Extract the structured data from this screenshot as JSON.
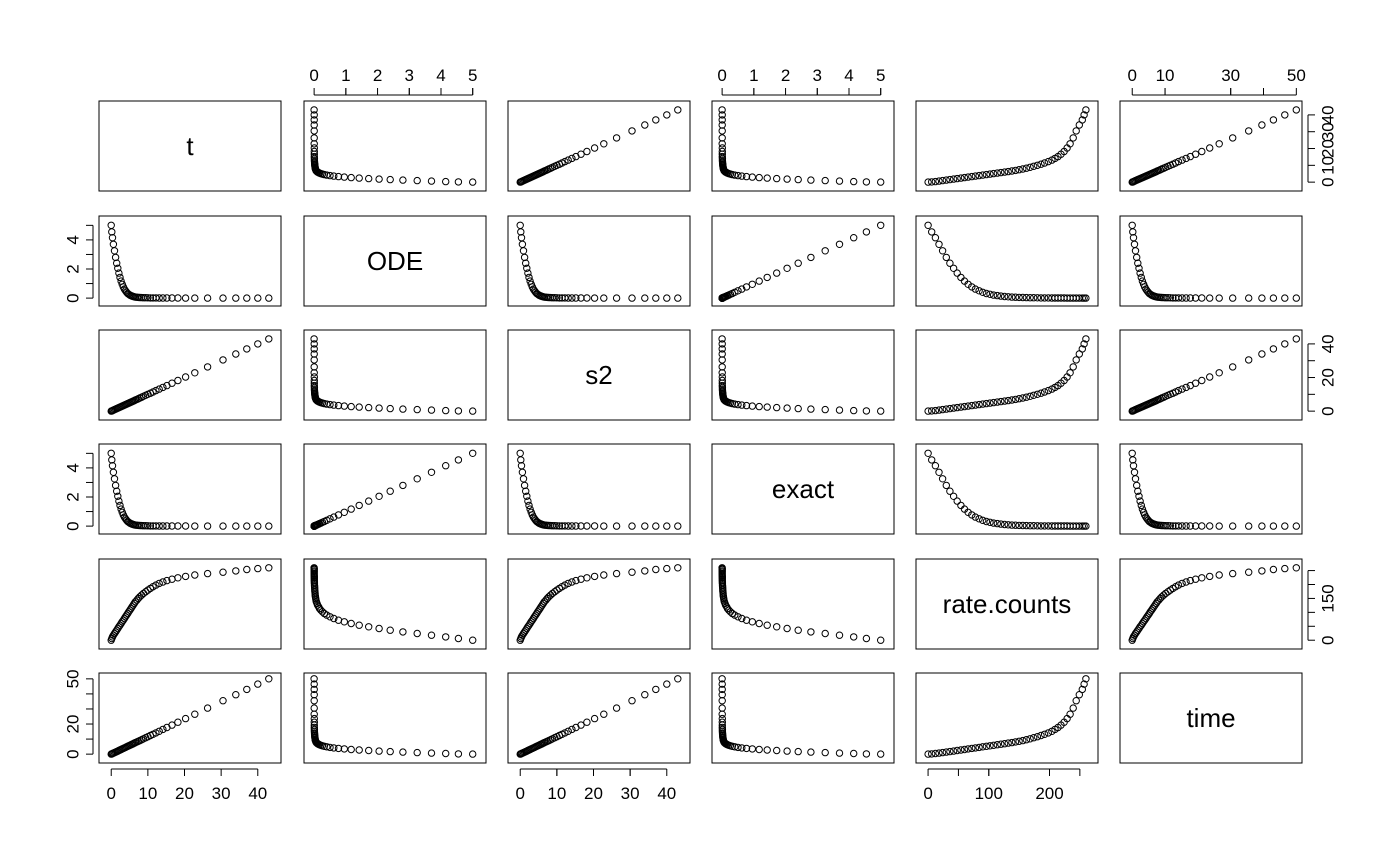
{
  "chart_data": {
    "type": "scatter",
    "variables": [
      "t",
      "ODE",
      "s2",
      "exact",
      "rate.counts",
      "time"
    ],
    "axes": {
      "t": {
        "range": [
          -1.7,
          44.7
        ],
        "ticks": [
          0,
          10,
          20,
          30,
          40
        ],
        "tick_labels": [
          "0",
          "10",
          "20",
          "30",
          "40"
        ],
        "tick_positions_minor": []
      },
      "ODE": {
        "range": [
          -0.13,
          5.23
        ],
        "ticks": [
          0,
          1,
          2,
          3,
          4,
          5
        ],
        "tick_labels": [
          "0",
          "1",
          "2",
          "3",
          "4",
          "5"
        ],
        "tick_labels_side": [
          "0",
          "2",
          "4"
        ],
        "ticks_side": [
          0,
          2,
          4
        ],
        "minor": [
          1,
          3,
          5
        ]
      },
      "s2": {
        "range": [
          -1.7,
          44.7
        ],
        "ticks": [
          0,
          10,
          20,
          30,
          40
        ],
        "tick_labels": [
          "0",
          "10",
          "20",
          "30",
          "40"
        ],
        "ticks_side": [
          0,
          20,
          40
        ],
        "minor": [
          10,
          30
        ]
      },
      "exact": {
        "range": [
          -0.13,
          5.23
        ],
        "ticks": [
          0,
          1,
          2,
          3,
          4,
          5
        ],
        "tick_labels": [
          "0",
          "1",
          "2",
          "3",
          "4",
          "5"
        ],
        "ticks_side": [
          0,
          2,
          4
        ],
        "minor": [
          1,
          3,
          5
        ]
      },
      "rate.counts": {
        "range": [
          -10,
          270
        ],
        "ticks": [
          0,
          100,
          200
        ],
        "tick_labels": [
          "0",
          "100",
          "200"
        ],
        "ticks_side": [
          0,
          150
        ],
        "minor": [
          50,
          100,
          200,
          250
        ]
      },
      "time": {
        "range": [
          -1.9,
          49.9
        ],
        "ticks": [
          0,
          10,
          30,
          50
        ],
        "tick_labels": [
          "0",
          "10",
          "30",
          "50"
        ],
        "ticks_side": [
          0,
          20,
          50
        ],
        "minor": [
          10,
          30,
          40
        ]
      }
    },
    "observations": {
      "t": [
        0,
        0.15,
        0.35,
        0.6,
        0.9,
        1.2,
        1.5,
        1.8,
        2.1,
        2.4,
        2.7,
        3.0,
        3.3,
        3.6,
        3.9,
        4.2,
        4.5,
        4.8,
        5.1,
        5.4,
        5.7,
        6.0,
        6.3,
        6.6,
        7.0,
        7.4,
        7.8,
        8.3,
        8.8,
        9.4,
        10.0,
        10.7,
        11.4,
        12.2,
        13.1,
        14.1,
        15.2,
        16.6,
        18.2,
        20.3,
        22.8,
        26.3,
        30.5,
        34.0,
        37.0,
        40.0,
        43.0
      ],
      "ODE": [
        5.0,
        4.55,
        4.15,
        3.7,
        3.25,
        2.8,
        2.4,
        2.05,
        1.72,
        1.42,
        1.17,
        0.95,
        0.77,
        0.62,
        0.5,
        0.4,
        0.32,
        0.26,
        0.21,
        0.17,
        0.14,
        0.11,
        0.09,
        0.07,
        0.06,
        0.05,
        0.04,
        0.035,
        0.03,
        0.025,
        0.02,
        0.017,
        0.014,
        0.012,
        0.01,
        0.008,
        0.007,
        0.006,
        0.005,
        0.004,
        0.003,
        0.002,
        0.002,
        0.001,
        0.001,
        0.001,
        0.0
      ],
      "s2": [
        0,
        0.15,
        0.35,
        0.6,
        0.9,
        1.2,
        1.5,
        1.8,
        2.1,
        2.4,
        2.7,
        3.0,
        3.3,
        3.6,
        3.9,
        4.2,
        4.5,
        4.8,
        5.1,
        5.4,
        5.7,
        6.0,
        6.3,
        6.6,
        7.0,
        7.4,
        7.8,
        8.3,
        8.8,
        9.4,
        10.0,
        10.7,
        11.4,
        12.2,
        13.1,
        14.1,
        15.2,
        16.6,
        18.2,
        20.3,
        22.8,
        26.3,
        30.5,
        34.0,
        37.0,
        40.0,
        43.0
      ],
      "exact": [
        5.0,
        4.55,
        4.15,
        3.7,
        3.25,
        2.8,
        2.4,
        2.05,
        1.72,
        1.42,
        1.17,
        0.95,
        0.77,
        0.62,
        0.5,
        0.4,
        0.32,
        0.26,
        0.21,
        0.17,
        0.14,
        0.11,
        0.09,
        0.07,
        0.06,
        0.05,
        0.04,
        0.035,
        0.03,
        0.025,
        0.02,
        0.017,
        0.014,
        0.012,
        0.01,
        0.008,
        0.007,
        0.006,
        0.005,
        0.004,
        0.003,
        0.002,
        0.002,
        0.001,
        0.001,
        0.001,
        0.0
      ],
      "rate.counts": [
        0,
        6,
        12,
        18,
        24,
        30,
        36,
        42,
        48,
        54,
        60,
        66,
        72,
        78,
        84,
        90,
        96,
        102,
        108,
        114,
        120,
        126,
        132,
        138,
        144,
        150,
        156,
        162,
        168,
        174,
        180,
        186,
        192,
        198,
        204,
        209,
        214,
        219,
        224,
        229,
        234,
        239,
        244,
        249,
        254,
        257,
        260
      ],
      "time": [
        0,
        0.17,
        0.4,
        0.68,
        1.0,
        1.35,
        1.7,
        2.05,
        2.4,
        2.75,
        3.1,
        3.45,
        3.8,
        4.15,
        4.5,
        4.85,
        5.2,
        5.55,
        5.9,
        6.25,
        6.6,
        6.95,
        7.3,
        7.65,
        8.1,
        8.55,
        9.0,
        9.6,
        10.2,
        10.9,
        11.6,
        12.4,
        13.2,
        14.1,
        15.2,
        16.4,
        17.7,
        19.3,
        21.2,
        23.6,
        26.5,
        30.6,
        35.5,
        39.5,
        43.0,
        46.5,
        50.0
      ]
    }
  }
}
